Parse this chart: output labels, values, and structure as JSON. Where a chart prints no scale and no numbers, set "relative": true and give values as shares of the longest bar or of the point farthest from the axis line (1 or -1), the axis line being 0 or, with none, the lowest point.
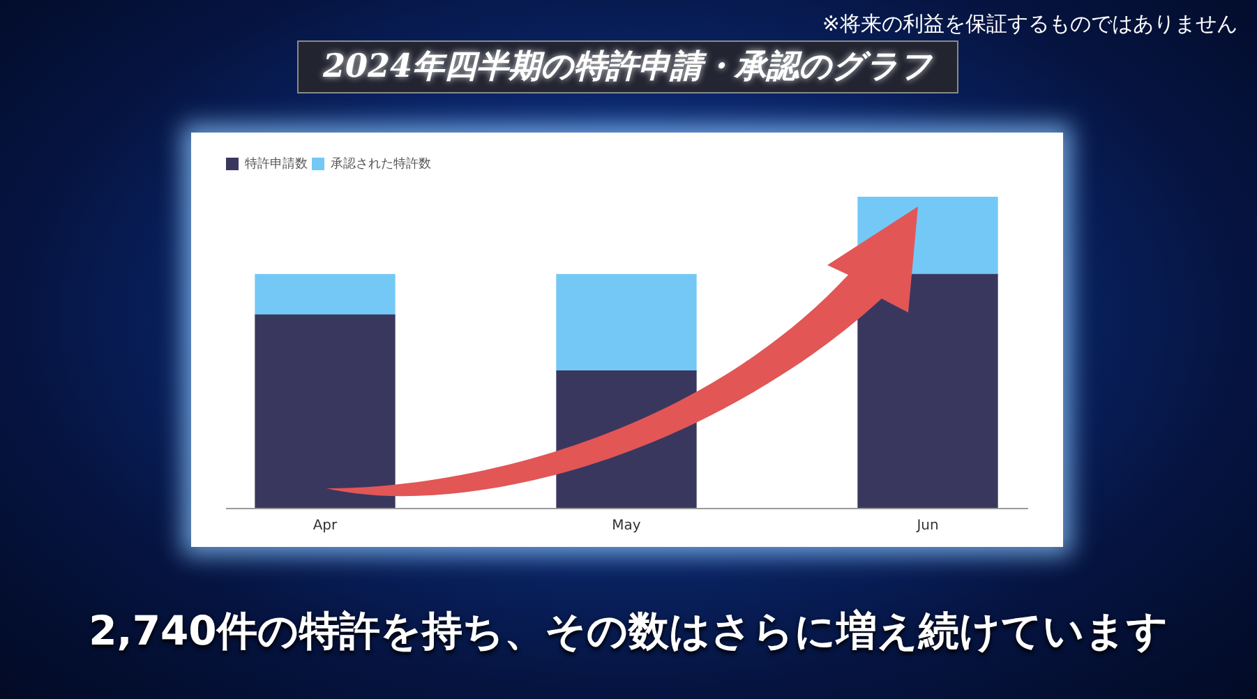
{
  "chart_data": {
    "type": "bar",
    "title": "2024年四半期の特許申請・承認のグラフ",
    "annotations": [
      "※将来の利益を保証するものではありません",
      "2,740件の特許を持ち、その数はさらに増え続けています"
    ],
    "categories": [
      "Apr",
      "May",
      "Jun"
    ],
    "series": [
      {
        "name": "特許申請数",
        "color": "#3a375f",
        "values": [
          0.62,
          0.44,
          0.75
        ]
      },
      {
        "name": "承認された特許数",
        "color": "#73c8f6",
        "values": [
          0.13,
          0.31,
          0.25
        ]
      }
    ],
    "stacked": true,
    "relative": true,
    "legend": "top left",
    "grid": false
  }
}
